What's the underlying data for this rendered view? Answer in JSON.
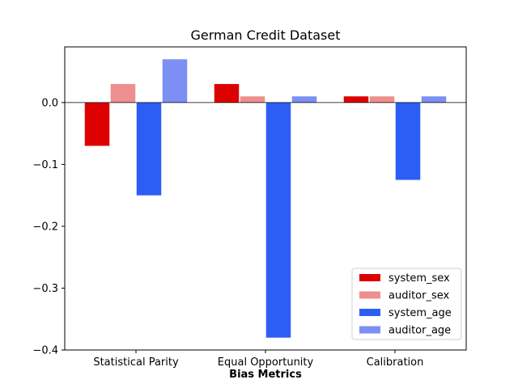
{
  "chart_data": {
    "type": "bar",
    "title": "German Credit Dataset",
    "xlabel": "Bias Metrics",
    "ylabel": "",
    "categories": [
      "Statistical Parity",
      "Equal Opportunity",
      "Calibration"
    ],
    "ylim": [
      -0.4,
      0.09
    ],
    "yticks": [
      0.0,
      -0.1,
      -0.2,
      -0.3,
      -0.4
    ],
    "ytick_labels": [
      "0.0",
      "−0.1",
      "−0.2",
      "−0.3",
      "−0.4"
    ],
    "series": [
      {
        "name": "system_sex",
        "color": "#dd0000",
        "values": [
          -0.07,
          0.03,
          0.01
        ]
      },
      {
        "name": "auditor_sex",
        "color": "#ee8e8e",
        "values": [
          0.03,
          0.01,
          0.01
        ]
      },
      {
        "name": "system_age",
        "color": "#2c5ef5",
        "values": [
          -0.15,
          -0.38,
          -0.125
        ]
      },
      {
        "name": "auditor_age",
        "color": "#7c8ff3",
        "values": [
          0.07,
          0.01,
          0.01
        ]
      }
    ],
    "legend_position": "lower-right",
    "grid": false
  }
}
